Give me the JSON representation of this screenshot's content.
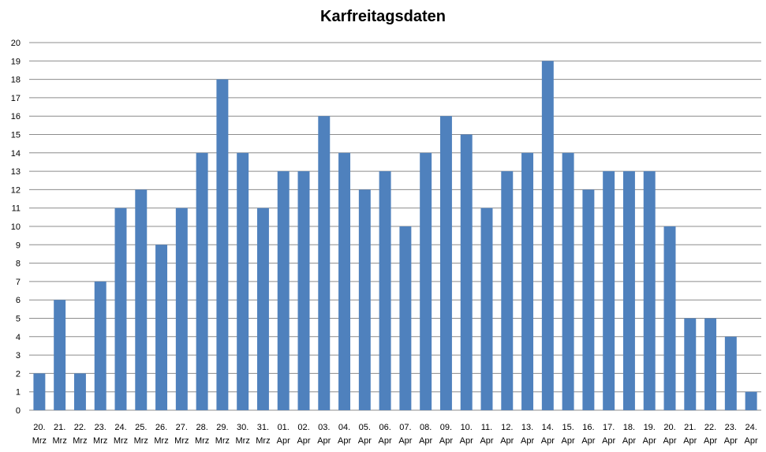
{
  "chart_data": {
    "type": "bar",
    "title": "Karfreitagsdaten",
    "xlabel": "",
    "ylabel": "",
    "ylim": [
      0,
      20
    ],
    "ytick_step": 1,
    "grid": true,
    "bar_color": "#4F81BD",
    "categories": [
      [
        "20.",
        "Mrz"
      ],
      [
        "21.",
        "Mrz"
      ],
      [
        "22.",
        "Mrz"
      ],
      [
        "23.",
        "Mrz"
      ],
      [
        "24.",
        "Mrz"
      ],
      [
        "25.",
        "Mrz"
      ],
      [
        "26.",
        "Mrz"
      ],
      [
        "27.",
        "Mrz"
      ],
      [
        "28.",
        "Mrz"
      ],
      [
        "29.",
        "Mrz"
      ],
      [
        "30.",
        "Mrz"
      ],
      [
        "31.",
        "Mrz"
      ],
      [
        "01.",
        "Apr"
      ],
      [
        "02.",
        "Apr"
      ],
      [
        "03.",
        "Apr"
      ],
      [
        "04.",
        "Apr"
      ],
      [
        "05.",
        "Apr"
      ],
      [
        "06.",
        "Apr"
      ],
      [
        "07.",
        "Apr"
      ],
      [
        "08.",
        "Apr"
      ],
      [
        "09.",
        "Apr"
      ],
      [
        "10.",
        "Apr"
      ],
      [
        "11.",
        "Apr"
      ],
      [
        "12.",
        "Apr"
      ],
      [
        "13.",
        "Apr"
      ],
      [
        "14.",
        "Apr"
      ],
      [
        "15.",
        "Apr"
      ],
      [
        "16.",
        "Apr"
      ],
      [
        "17.",
        "Apr"
      ],
      [
        "18.",
        "Apr"
      ],
      [
        "19.",
        "Apr"
      ],
      [
        "20.",
        "Apr"
      ],
      [
        "21.",
        "Apr"
      ],
      [
        "22.",
        "Apr"
      ],
      [
        "23.",
        "Apr"
      ],
      [
        "24.",
        "Apr"
      ]
    ],
    "values": [
      2,
      6,
      2,
      7,
      11,
      12,
      9,
      11,
      14,
      18,
      14,
      11,
      13,
      13,
      16,
      14,
      12,
      13,
      10,
      14,
      16,
      15,
      11,
      13,
      14,
      19,
      14,
      12,
      13,
      13,
      13,
      10,
      5,
      5,
      4,
      1
    ]
  }
}
